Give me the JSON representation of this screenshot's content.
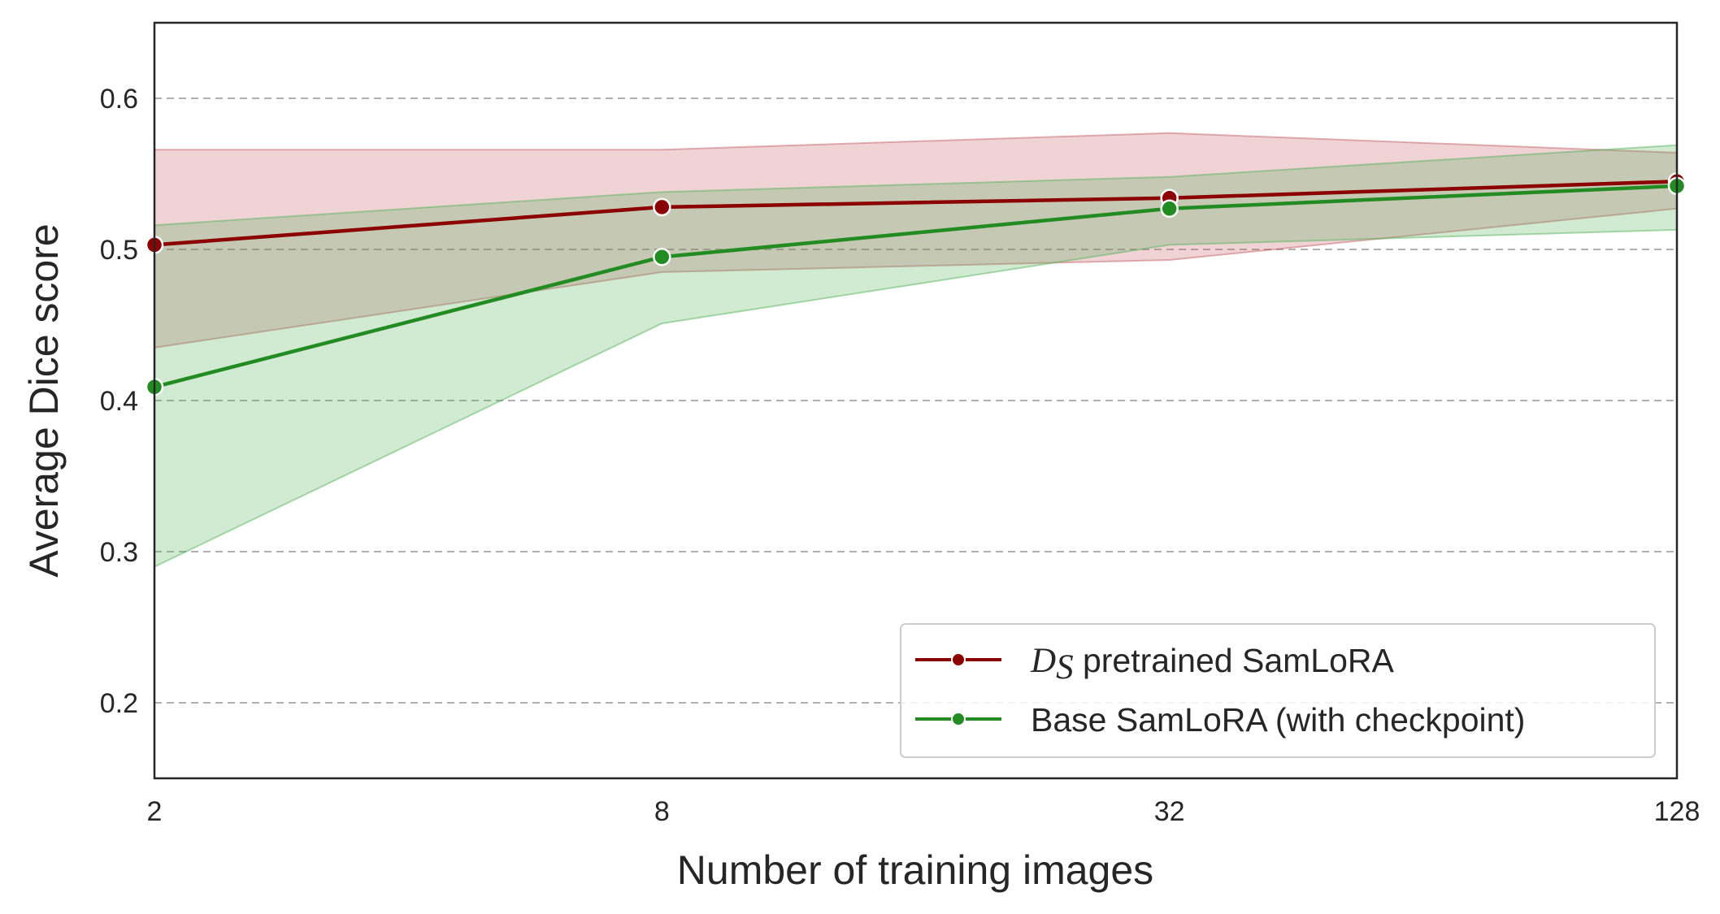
{
  "chart_data": {
    "type": "line",
    "xlabel": "Number of training images",
    "ylabel": "Average Dice score",
    "x": [
      2,
      8,
      32,
      128
    ],
    "x_tick_labels": [
      "2",
      "8",
      "32",
      "128"
    ],
    "x_scale": "log2",
    "ylim": [
      0.15,
      0.65
    ],
    "y_ticks": [
      0.2,
      0.3,
      0.4,
      0.5,
      0.6
    ],
    "y_tick_labels": [
      "0.2",
      "0.3",
      "0.4",
      "0.5",
      "0.6"
    ],
    "grid": "horizontal dashed",
    "legend_position": "bottom-right",
    "series": [
      {
        "name": "pretrained SamLoRA",
        "name_math_prefix": "D",
        "name_math_subscript": "S",
        "color": "#8b0000",
        "band_color": "#c2565e",
        "values": [
          0.503,
          0.528,
          0.534,
          0.545
        ],
        "band_upper": [
          0.566,
          0.566,
          0.577,
          0.564
        ],
        "band_lower": [
          0.435,
          0.485,
          0.493,
          0.527
        ]
      },
      {
        "name": "Base SamLoRA (with checkpoint)",
        "color": "#228b22",
        "band_color": "#4caf50",
        "values": [
          0.409,
          0.495,
          0.527,
          0.542
        ],
        "band_upper": [
          0.516,
          0.538,
          0.548,
          0.569
        ],
        "band_lower": [
          0.29,
          0.451,
          0.503,
          0.513
        ]
      }
    ]
  }
}
